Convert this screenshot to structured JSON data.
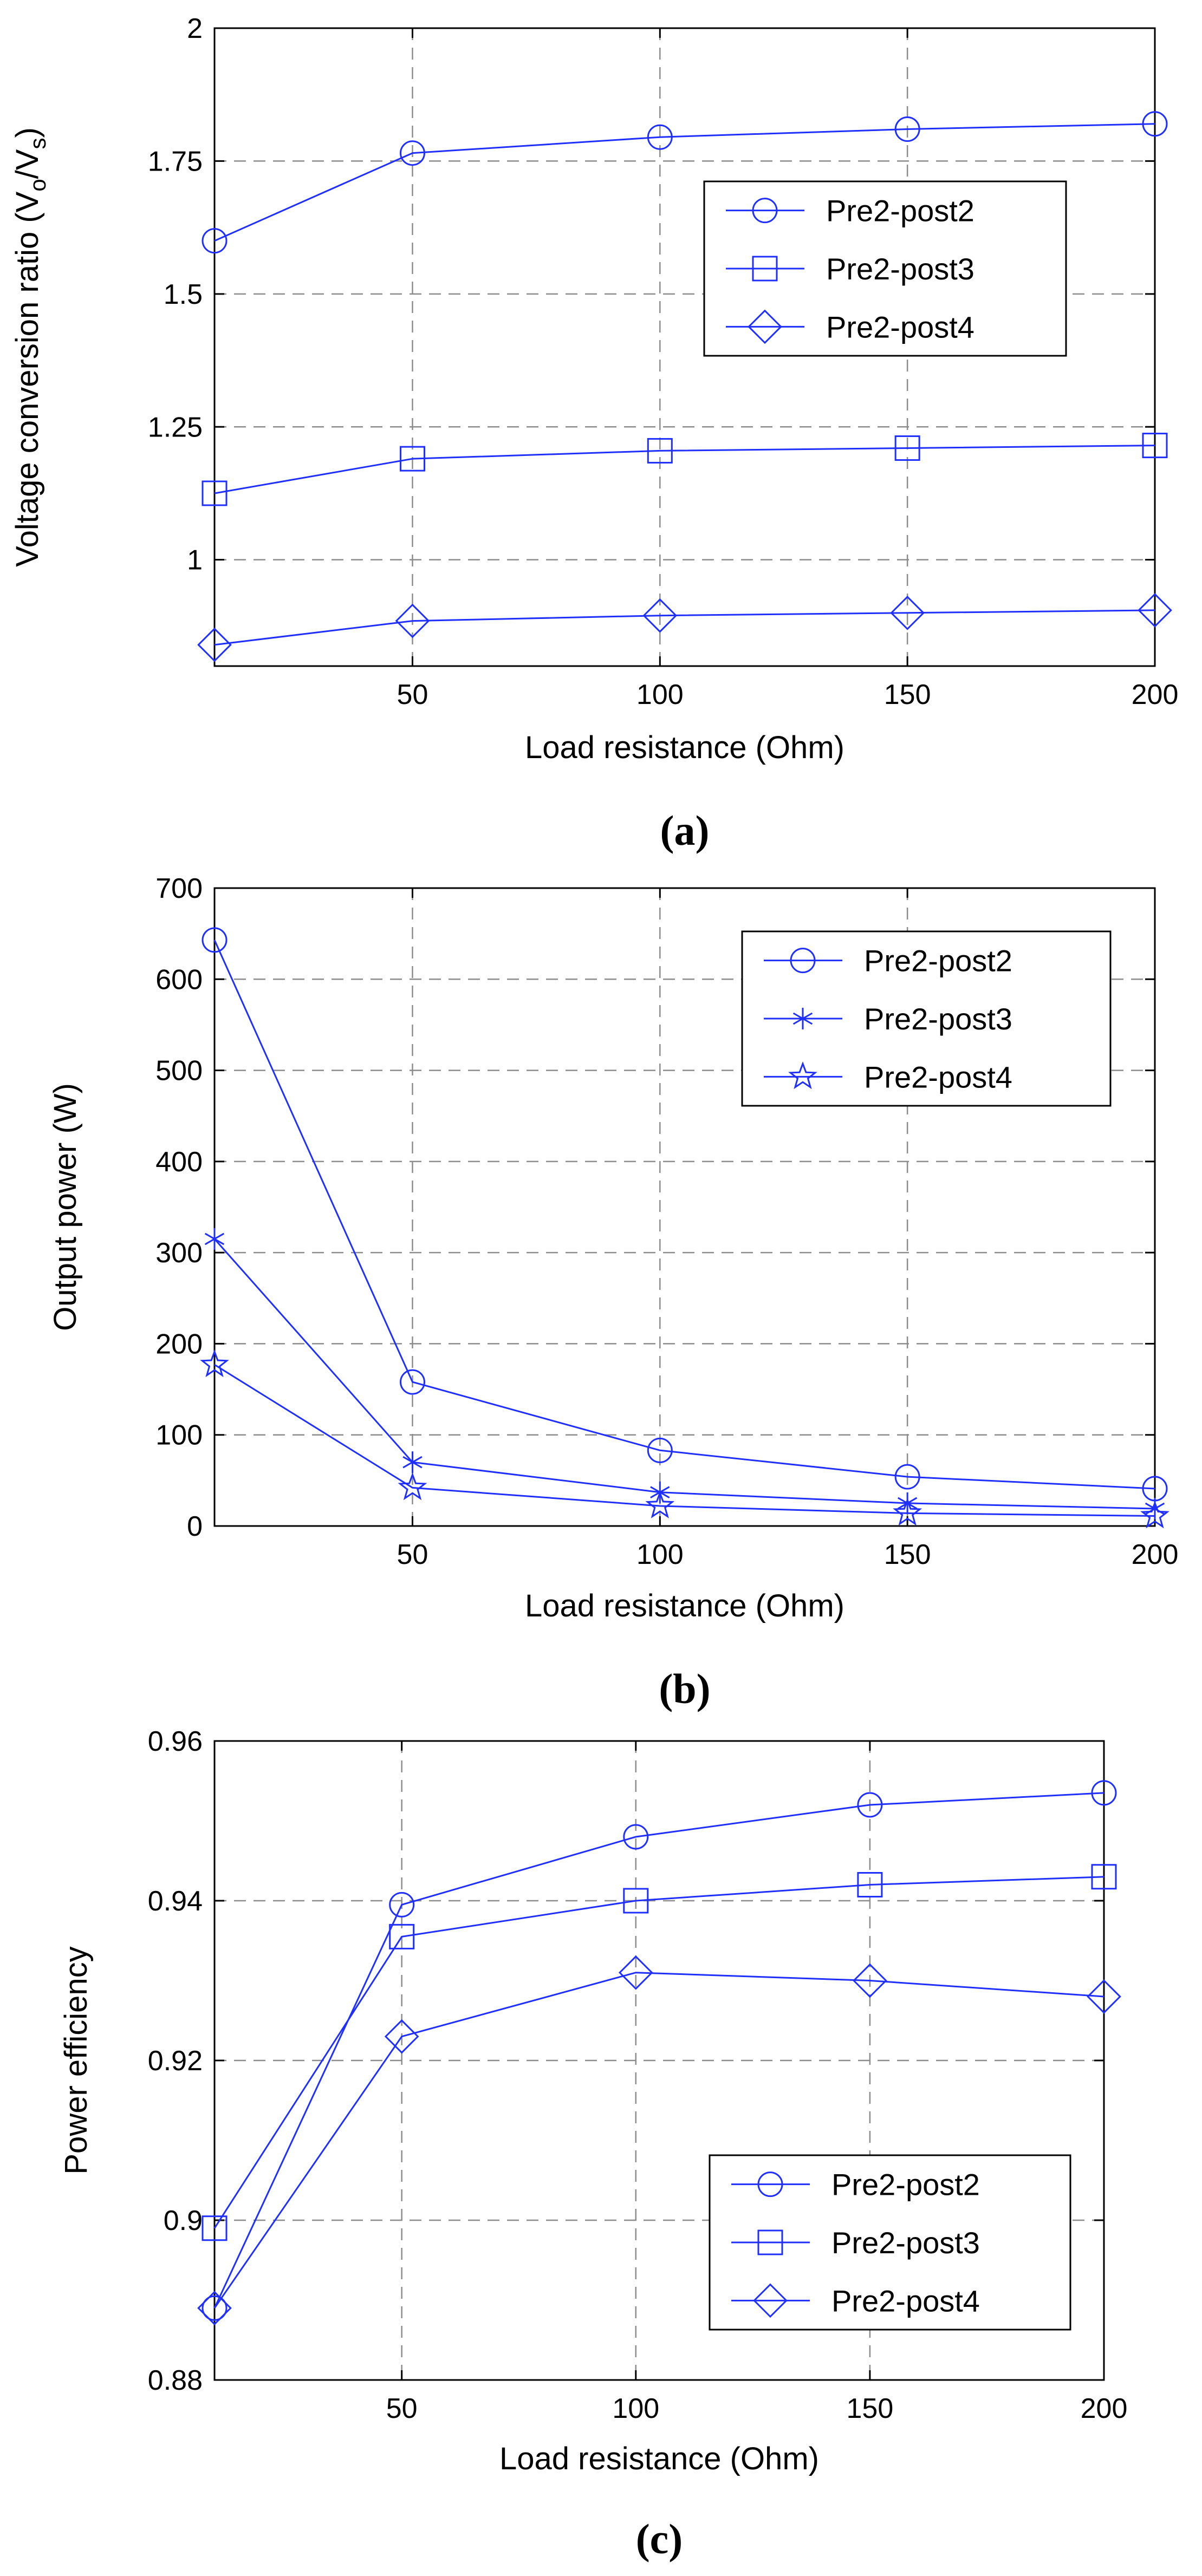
{
  "chart_data": [
    {
      "type": "line",
      "caption": "(a)",
      "title": "",
      "xlabel": "Load resistance (Ohm)",
      "ylabel_parts": [
        "Voltage conversion ratio (V",
        "o",
        "/V",
        "s",
        ")"
      ],
      "xlim": [
        10,
        200
      ],
      "ylim": [
        0.8,
        2.0
      ],
      "xticks": [
        50,
        100,
        150,
        200
      ],
      "xtick_labels": [
        "50",
        "100",
        "150",
        "200"
      ],
      "yticks": [
        1.0,
        1.25,
        1.5,
        1.75,
        2.0
      ],
      "ytick_labels": [
        "1",
        "1.25",
        "1.5",
        "1.75",
        "2"
      ],
      "grid": true,
      "legend_position": "top-right",
      "x": [
        10,
        50,
        100,
        150,
        200
      ],
      "series": [
        {
          "name": "Pre2-post2",
          "marker": "circle",
          "values": [
            1.6,
            1.765,
            1.795,
            1.81,
            1.82
          ]
        },
        {
          "name": "Pre2-post3",
          "marker": "square",
          "values": [
            1.125,
            1.19,
            1.205,
            1.21,
            1.215
          ]
        },
        {
          "name": "Pre2-post4",
          "marker": "diamond",
          "values": [
            0.84,
            0.885,
            0.895,
            0.9,
            0.905
          ]
        }
      ]
    },
    {
      "type": "line",
      "caption": "(b)",
      "title": "",
      "xlabel": "Load resistance (Ohm)",
      "ylabel_parts": [
        "Output power (W)"
      ],
      "xlim": [
        10,
        200
      ],
      "ylim": [
        0,
        700
      ],
      "xticks": [
        50,
        100,
        150,
        200
      ],
      "xtick_labels": [
        "50",
        "100",
        "150",
        "200"
      ],
      "yticks": [
        0,
        100,
        200,
        300,
        400,
        500,
        600,
        700
      ],
      "ytick_labels": [
        "0",
        "100",
        "200",
        "300",
        "400",
        "500",
        "600",
        "700"
      ],
      "grid": true,
      "legend_position": "top-right",
      "x": [
        10,
        50,
        100,
        150,
        200
      ],
      "series": [
        {
          "name": "Pre2-post2",
          "marker": "circle",
          "values": [
            643,
            158,
            83,
            54,
            41
          ]
        },
        {
          "name": "Pre2-post3",
          "marker": "asterisk",
          "values": [
            315,
            70,
            37,
            25,
            19
          ]
        },
        {
          "name": "Pre2-post4",
          "marker": "star",
          "values": [
            177,
            42,
            22,
            14,
            11
          ]
        }
      ]
    },
    {
      "type": "line",
      "caption": "(c)",
      "title": "",
      "xlabel": "Load resistance (Ohm)",
      "ylabel_parts": [
        "Power efficiency"
      ],
      "xlim": [
        10,
        200
      ],
      "ylim": [
        0.88,
        0.96
      ],
      "xticks": [
        50,
        100,
        150,
        200
      ],
      "xtick_labels": [
        "50",
        "100",
        "150",
        "200"
      ],
      "yticks": [
        0.88,
        0.9,
        0.92,
        0.94,
        0.96
      ],
      "ytick_labels": [
        "0.88",
        "0.9",
        "0.92",
        "0.94",
        "0.96"
      ],
      "grid": true,
      "legend_position": "bottom-right",
      "x": [
        10,
        50,
        100,
        150,
        200
      ],
      "series": [
        {
          "name": "Pre2-post2",
          "marker": "circle",
          "values": [
            0.889,
            0.9395,
            0.948,
            0.952,
            0.9535
          ]
        },
        {
          "name": "Pre2-post3",
          "marker": "square",
          "values": [
            0.899,
            0.9355,
            0.94,
            0.942,
            0.943
          ]
        },
        {
          "name": "Pre2-post4",
          "marker": "diamond",
          "values": [
            0.889,
            0.923,
            0.931,
            0.93,
            0.928
          ]
        }
      ]
    }
  ]
}
